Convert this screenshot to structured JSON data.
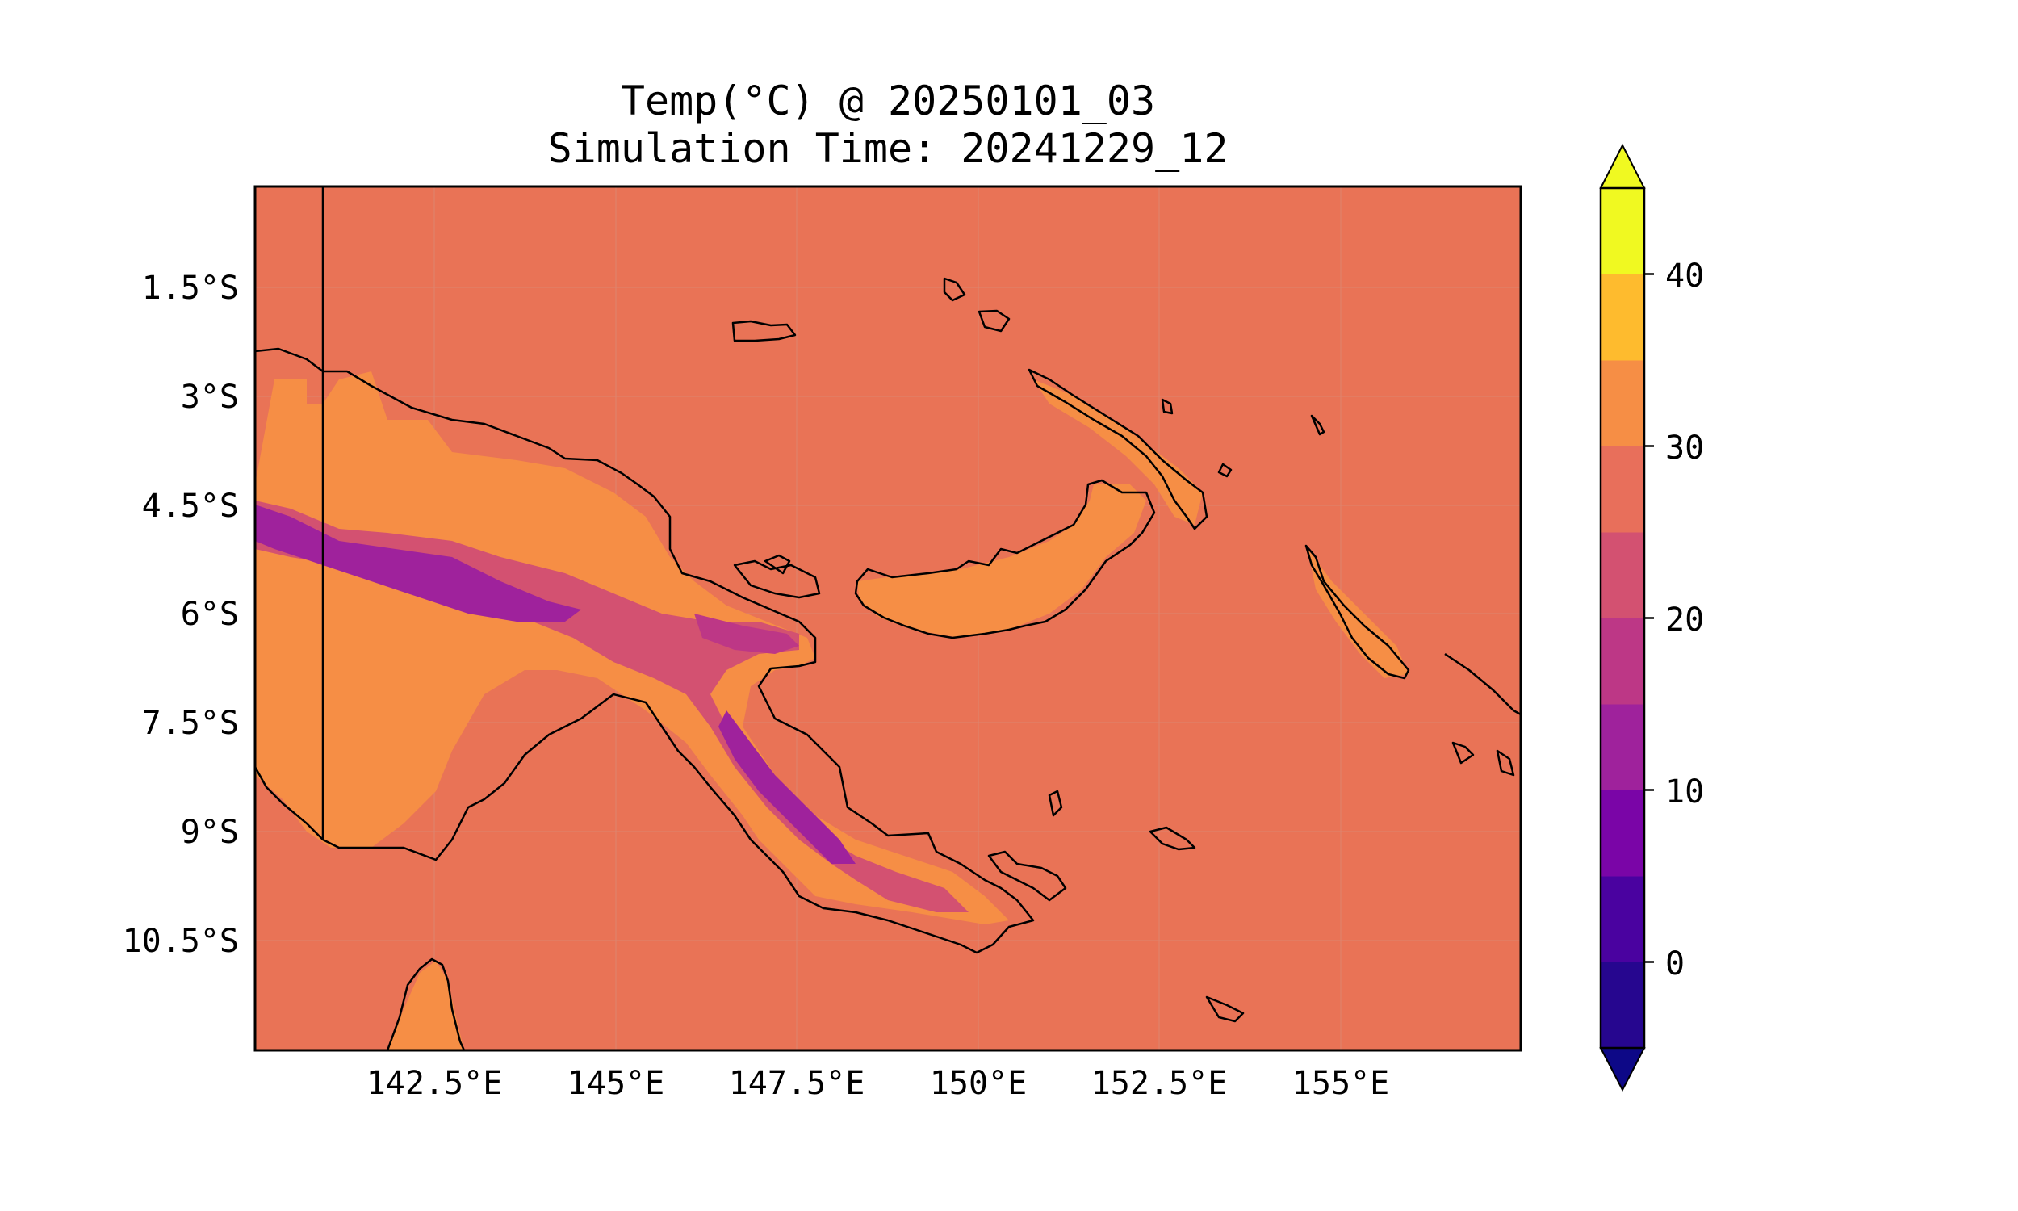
{
  "title": {
    "line1": "Temp(°C) @ 20250101_03",
    "line2": "Simulation Time: 20241229_12"
  },
  "map": {
    "x_ticks": [
      "142.5°E",
      "145°E",
      "147.5°E",
      "150°E",
      "152.5°E",
      "155°E"
    ],
    "y_ticks": [
      "1.5°S",
      "3°S",
      "4.5°S",
      "6°S",
      "7.5°S",
      "9°S",
      "10.5°S"
    ],
    "background_color": "#e97356"
  },
  "colorbar": {
    "ticks": [
      "40",
      "30",
      "20",
      "10",
      "0"
    ],
    "levels": [
      -5,
      0,
      5,
      10,
      15,
      20,
      25,
      30,
      35,
      40,
      45
    ],
    "colors": [
      "#26068f",
      "#4a02a0",
      "#7a05a7",
      "#9f229c",
      "#bd3786",
      "#d35171",
      "#e86f5b",
      "#f68e45",
      "#febb2e",
      "#f0f921"
    ],
    "under_color": "#0d0887",
    "over_color": "#f0f921"
  }
}
